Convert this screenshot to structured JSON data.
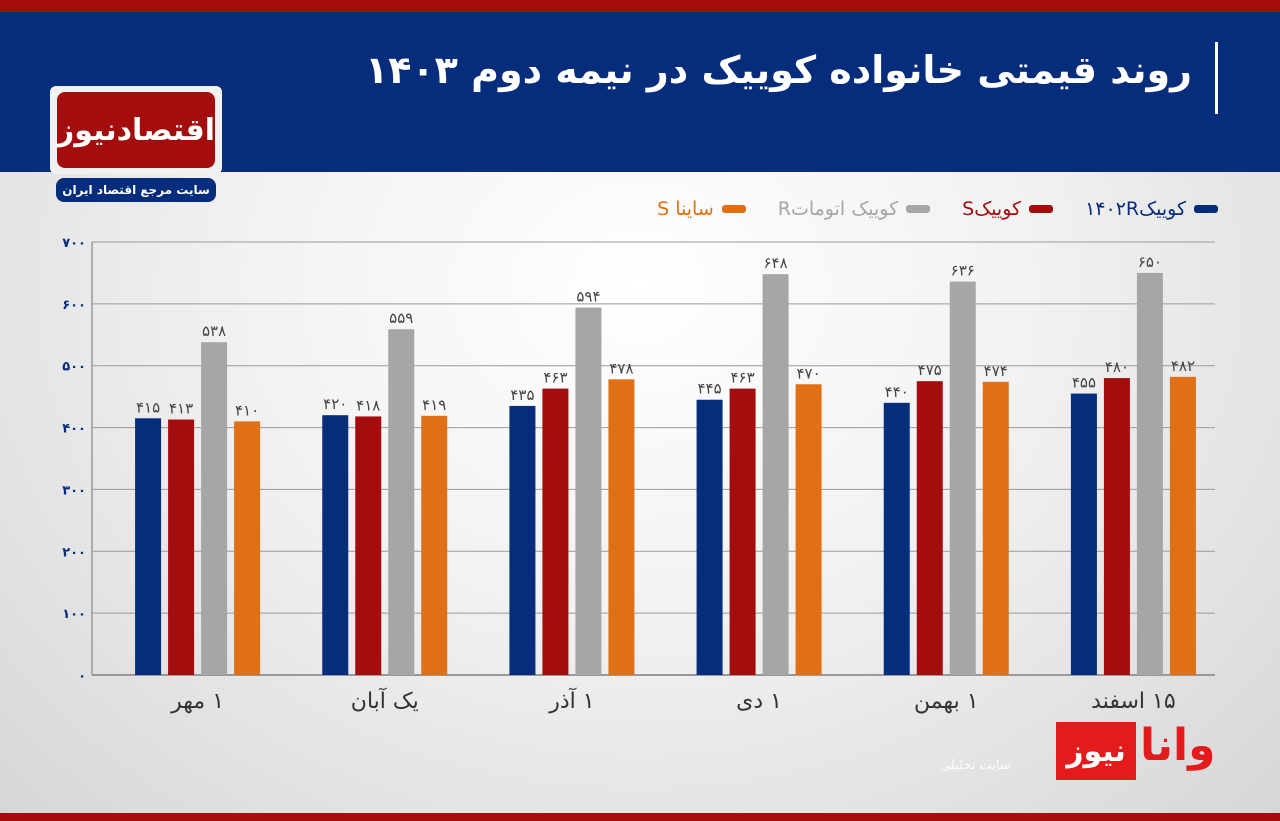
{
  "header": {
    "title": "روند قیمتی خانواده کوییک در نیمه دوم ۱۴۰۳"
  },
  "logo": {
    "name": "اقتصادنیوز",
    "tagline": "سایت مرجع اقتصاد ایران"
  },
  "watermark": {
    "name": "وانانیوز",
    "name_part1": "نیوز",
    "name_part2": "وانا",
    "tagline": "سایت تحلیلی"
  },
  "colors": {
    "header": "#062c7c",
    "accent_red": "#a30d0d"
  },
  "chart_data": {
    "type": "bar",
    "title": "روند قیمتی خانواده کوییک در نیمه دوم ۱۴۰۳",
    "categories": [
      "۱ مهر",
      "یک آبان",
      "۱ آذر",
      "۱ دی",
      "۱ بهمن",
      "۱۵ اسفند"
    ],
    "series": [
      {
        "name": "کوییک۱۴۰۲R",
        "color": "#062c7c",
        "values": [
          415,
          420,
          435,
          445,
          440,
          455
        ]
      },
      {
        "name": "کوییکS",
        "color": "#a30d0d",
        "values": [
          413,
          418,
          463,
          463,
          475,
          480
        ]
      },
      {
        "name": "کوییک اتوماتR",
        "color": "#a6a6a6",
        "values": [
          538,
          559,
          594,
          648,
          636,
          650
        ]
      },
      {
        "name": "ساینا S",
        "color": "#e07016",
        "values": [
          410,
          419,
          478,
          470,
          474,
          482
        ]
      }
    ],
    "ylim": [
      0,
      700
    ],
    "yticks": [
      0,
      100,
      200,
      300,
      400,
      500,
      600,
      700
    ],
    "ytick_labels": [
      "۰",
      "۱۰۰",
      "۲۰۰",
      "۳۰۰",
      "۴۰۰",
      "۵۰۰",
      "۶۰۰",
      "۷۰۰"
    ],
    "grid": true,
    "legend_position": "top-right",
    "data_labels": true
  }
}
